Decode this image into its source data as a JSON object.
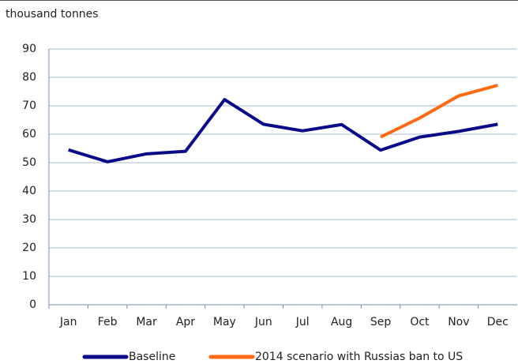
{
  "chart_data": {
    "type": "line",
    "y_label": "thousand tonnes",
    "categories": [
      "Jan",
      "Feb",
      "Mar",
      "Apr",
      "May",
      "Jun",
      "Jul",
      "Aug",
      "Sep",
      "Oct",
      "Nov",
      "Dec"
    ],
    "series": [
      {
        "name": "Baseline",
        "color": "#0b0b8a",
        "values": [
          54.5,
          50.3,
          53.1,
          54,
          72.2,
          63.5,
          61.2,
          63.4,
          54.4,
          59,
          61,
          63.5
        ]
      },
      {
        "name": "2014 scenario with Russias ban to US",
        "color": "#ff6a13",
        "values": [
          null,
          null,
          null,
          null,
          null,
          null,
          null,
          null,
          59,
          65.7,
          73.5,
          77.2
        ]
      }
    ],
    "ylim": [
      0,
      90
    ],
    "yticks": [
      0,
      10,
      20,
      30,
      40,
      50,
      60,
      70,
      80,
      90
    ],
    "grid": true
  }
}
